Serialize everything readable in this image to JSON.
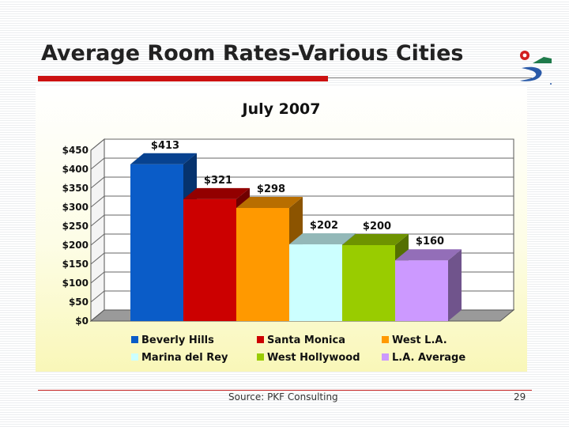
{
  "slide": {
    "title": "Average Room Rates-Various Cities",
    "source": "Source: PKF Consulting",
    "page_number": "29"
  },
  "colors": {
    "title_bar": "#cc1111",
    "logo_red": "#d22020",
    "logo_green": "#1e7a4a",
    "logo_blue": "#2a5aa8"
  },
  "chart_data": {
    "type": "bar",
    "title": "July 2007",
    "xlabel": "",
    "ylabel": "",
    "categories": [
      "Beverly Hills",
      "Santa Monica",
      "West L.A.",
      "Marina del Rey",
      "West Hollywood",
      "L.A. Average"
    ],
    "values": [
      413,
      321,
      298,
      202,
      200,
      160
    ],
    "data_labels": [
      "$413",
      "$321",
      "$298",
      "$202",
      "$200",
      "$160"
    ],
    "colors": [
      "#0a5cc8",
      "#cc0000",
      "#ff9900",
      "#ccffff",
      "#99cc00",
      "#cc99ff"
    ],
    "ylim": [
      0,
      450
    ],
    "yticks": [
      0,
      50,
      100,
      150,
      200,
      250,
      300,
      350,
      400,
      450
    ],
    "ytick_labels": [
      "$0",
      "$50",
      "$100",
      "$150",
      "$200",
      "$250",
      "$300",
      "$350",
      "$400",
      "$450"
    ],
    "grid": true,
    "legend_position": "bottom",
    "three_d": true
  }
}
